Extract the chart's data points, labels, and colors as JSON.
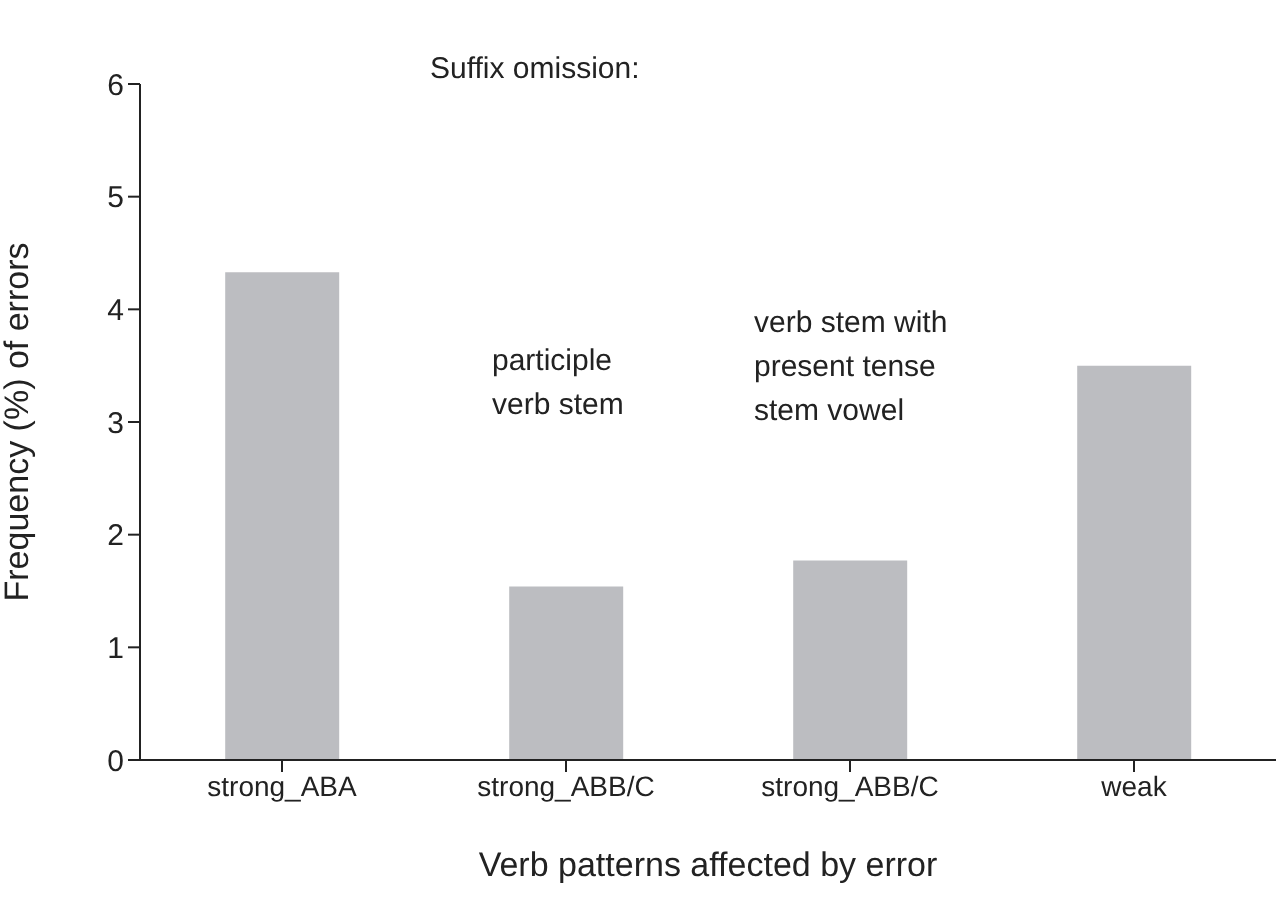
{
  "chart_data": {
    "type": "bar",
    "xlabel": "Verb patterns affected by error",
    "ylabel": "Frequency (%) of errors",
    "categories": [
      "strong_ABA",
      "strong_ABB/C",
      "strong_ABB/C",
      "weak"
    ],
    "values": [
      4.33,
      1.54,
      1.77,
      3.5
    ],
    "color": "#bcbdc1",
    "ylim": [
      0,
      6
    ],
    "yticks": [
      0,
      1,
      2,
      3,
      4,
      5,
      6
    ],
    "grid": false,
    "legend": false,
    "annotations": [
      "Suffix omission:",
      "participle\nverb stem",
      "verb stem with\npresent tense\nstem vowel"
    ]
  }
}
